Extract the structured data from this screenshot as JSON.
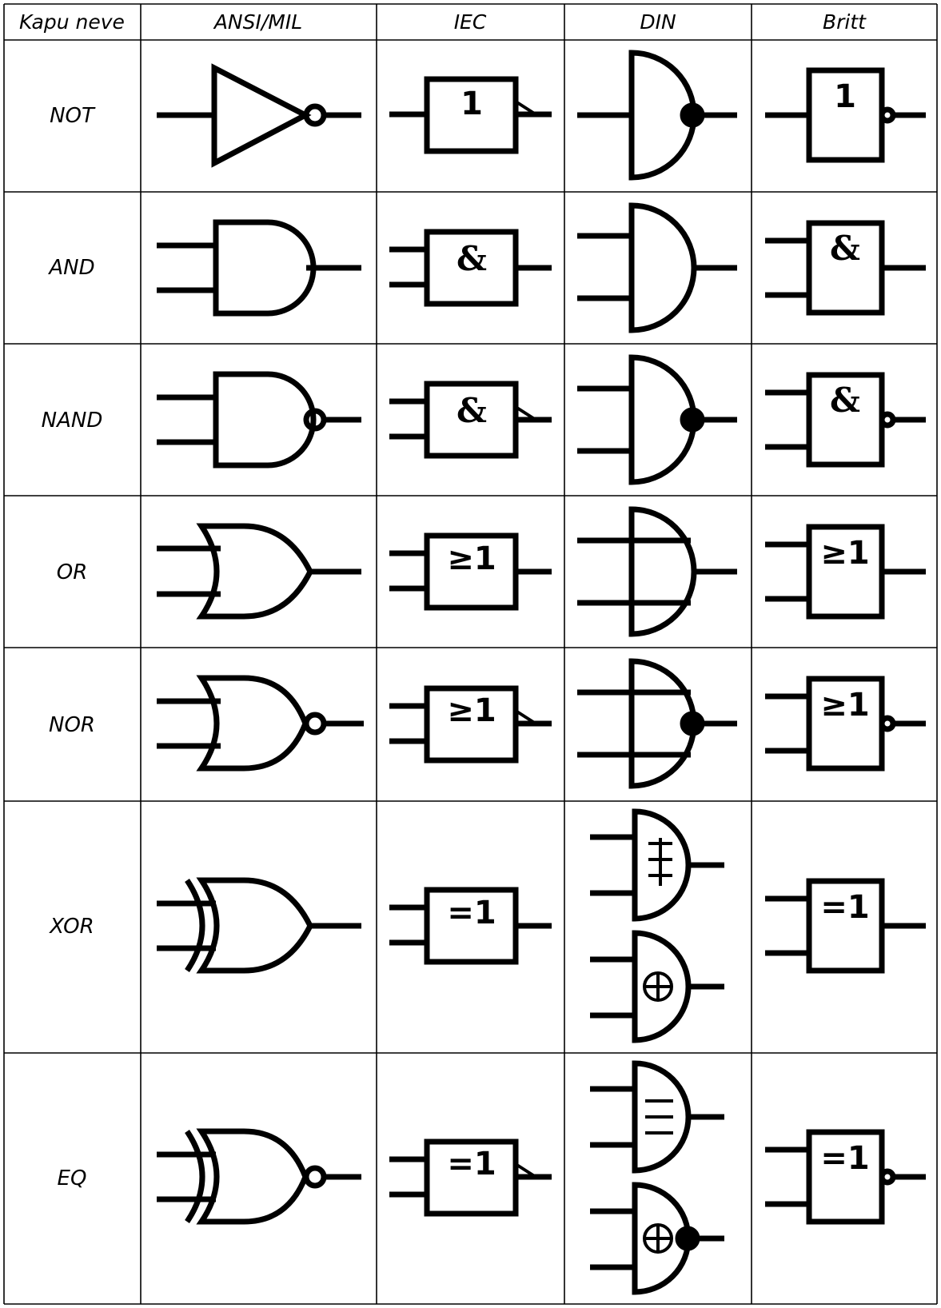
{
  "header": {
    "name": "Kapu neve",
    "ansi": "ANSI/MIL",
    "iec": "IEC",
    "din": "DIN",
    "britt": "Britt"
  },
  "rows": [
    {
      "name": "NOT",
      "iec_label": "1",
      "britt_label": "1"
    },
    {
      "name": "AND",
      "iec_label": "&",
      "britt_label": "&"
    },
    {
      "name": "NAND",
      "iec_label": "&",
      "britt_label": "&"
    },
    {
      "name": "OR",
      "iec_label": "≥1",
      "britt_label": "≥1"
    },
    {
      "name": "NOR",
      "iec_label": "≥1",
      "britt_label": "≥1"
    },
    {
      "name": "XOR",
      "iec_label": "=1",
      "britt_label": "=1"
    },
    {
      "name": "EQ",
      "iec_label": "=1",
      "britt_label": "=1"
    }
  ],
  "icons": {
    "ansi": "ansi-gate-icon",
    "iec": "iec-box-icon",
    "din": "din-gate-icon",
    "britt": "britt-box-icon"
  }
}
